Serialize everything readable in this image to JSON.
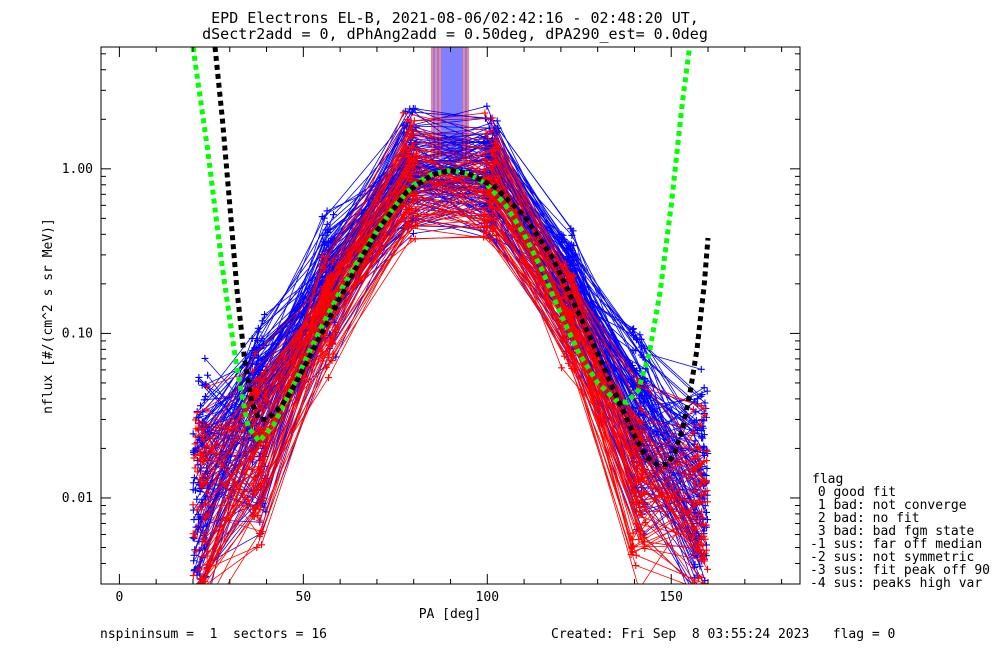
{
  "title_line1": "EPD Electrons EL-B, 2021-08-06/02:42:16 - 02:48:20 UT,",
  "title_line2": "dSectr2add = 0, dPhAng2add = 0.50deg, dPA290_est=   0.0deg",
  "footer": {
    "left": "nspininsum =  1  sectors = 16",
    "right": "Created: Fri Sep  8 03:55:24 2023   flag = 0"
  },
  "legend": {
    "title": "flag",
    "items": [
      " 0 good fit",
      " 1 bad: not converge",
      " 2 bad: no fit",
      " 3 bad: bad fgm state",
      "-1 sus: far off median",
      "-2 sus: not symmetric",
      "-3 sus: fit peak off 90",
      "-4 sus: peaks high var"
    ]
  },
  "chart_data": {
    "type": "line",
    "xlabel": "PA [deg]",
    "ylabel": "nflux [#/(cm^2 s sr MeV)]",
    "xlim": [
      -5,
      185
    ],
    "ylim": [
      0.003,
      5.5
    ],
    "ylog": true,
    "xticks": [
      0,
      50,
      100,
      150
    ],
    "xtick_labels": [
      "0",
      "50",
      "100",
      "150"
    ],
    "yticks": [
      0.01,
      0.1,
      1.0
    ],
    "ytick_labels": [
      "0.01",
      "0.10",
      "1.00"
    ],
    "sector_pa": [
      22,
      38,
      57,
      79,
      101,
      122,
      141,
      158
    ],
    "series": [
      {
        "color": "#0000ff",
        "style": "spectra",
        "n": 120,
        "median": [
          0.012,
          0.03,
          0.2,
          0.9,
          0.85,
          0.18,
          0.025,
          0.011
        ]
      },
      {
        "color": "#ff0000",
        "style": "spectra",
        "n": 70,
        "median": [
          0.009,
          0.02,
          0.15,
          0.85,
          0.8,
          0.13,
          0.013,
          0.008
        ]
      },
      {
        "color": "#00ff00",
        "style": "dashed-fit",
        "x": [
          20,
          24,
          28,
          32,
          35,
          38,
          42,
          46,
          50,
          55,
          60,
          65,
          70,
          75,
          80,
          85,
          90,
          95,
          100,
          105,
          110,
          115,
          120,
          125,
          130,
          135,
          138,
          141,
          144,
          147,
          150,
          153,
          155
        ],
        "y": [
          5.5,
          1.3,
          0.25,
          0.06,
          0.027,
          0.022,
          0.028,
          0.042,
          0.065,
          0.11,
          0.18,
          0.28,
          0.42,
          0.6,
          0.8,
          0.93,
          0.98,
          0.93,
          0.8,
          0.6,
          0.4,
          0.24,
          0.13,
          0.075,
          0.05,
          0.039,
          0.038,
          0.045,
          0.075,
          0.18,
          0.6,
          2.5,
          5.5
        ]
      },
      {
        "color": "#000000",
        "style": "dashed-fit",
        "x": [
          26,
          28,
          30,
          32,
          34,
          36,
          38,
          40,
          44,
          48,
          55,
          62,
          70,
          78,
          85,
          90,
          95,
          102,
          110,
          118,
          125,
          130,
          135,
          140,
          143,
          146,
          149,
          151,
          153,
          155,
          157,
          159,
          160
        ],
        "y": [
          5.5,
          2.0,
          0.6,
          0.18,
          0.07,
          0.038,
          0.03,
          0.03,
          0.036,
          0.05,
          0.1,
          0.2,
          0.42,
          0.72,
          0.92,
          0.98,
          0.93,
          0.78,
          0.52,
          0.28,
          0.13,
          0.075,
          0.042,
          0.024,
          0.018,
          0.016,
          0.016,
          0.019,
          0.026,
          0.042,
          0.08,
          0.2,
          0.38
        ]
      }
    ]
  }
}
